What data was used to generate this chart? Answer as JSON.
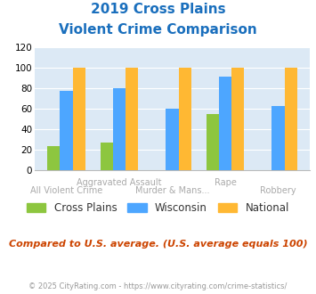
{
  "title_line1": "2019 Cross Plains",
  "title_line2": "Violent Crime Comparison",
  "cross_plains": [
    24,
    27,
    0,
    55,
    0
  ],
  "wisconsin": [
    77,
    80,
    60,
    91,
    63
  ],
  "national": [
    100,
    100,
    100,
    100,
    100
  ],
  "color_cp": "#8dc63f",
  "color_wi": "#4da6ff",
  "color_nat": "#ffb833",
  "ylim": [
    0,
    120
  ],
  "yticks": [
    0,
    20,
    40,
    60,
    80,
    100,
    120
  ],
  "bg_color": "#dce9f5",
  "title_color": "#1a6fbd",
  "note_text": "Compared to U.S. average. (U.S. average equals 100)",
  "note_color": "#cc4400",
  "footer_text": "© 2025 CityRating.com - https://www.cityrating.com/crime-statistics/",
  "footer_color": "#999999",
  "label_color": "#aaaaaa",
  "legend_labels": [
    "Cross Plains",
    "Wisconsin",
    "National"
  ],
  "top_labels": {
    "1": "Aggravated Assault",
    "3": "Rape"
  },
  "bot_labels": {
    "0": "All Violent Crime",
    "2": "Murder & Mans...",
    "4": "Robbery"
  }
}
